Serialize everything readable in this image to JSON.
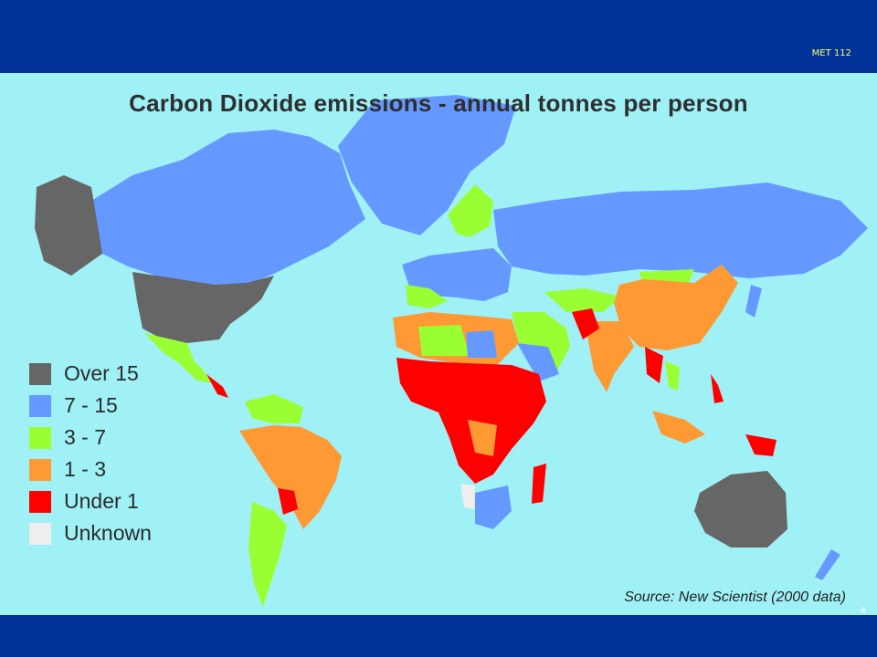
{
  "slide": {
    "course_code": "MET 112",
    "page_number": "4"
  },
  "map": {
    "title": "Carbon Dioxide emissions - annual tonnes per person",
    "source": "Source: New Scientist (2000 data)",
    "legend": [
      {
        "label": "Over 15",
        "color": "#666666"
      },
      {
        "label": "7 - 15",
        "color": "#6699ff"
      },
      {
        "label": "3 - 7",
        "color": "#99ff33"
      },
      {
        "label": "1 - 3",
        "color": "#ff9933"
      },
      {
        "label": "Under 1",
        "color": "#ff0000"
      },
      {
        "label": "Unknown",
        "color": "#eeeeee"
      }
    ]
  }
}
